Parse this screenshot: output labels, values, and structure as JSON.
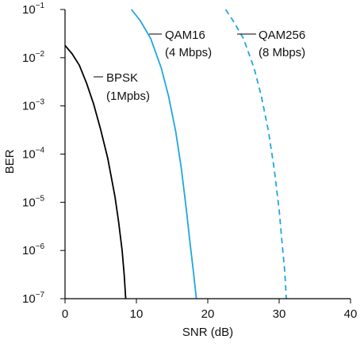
{
  "chart_data": {
    "type": "line",
    "title": "",
    "xlabel": "SNR (dB)",
    "ylabel": "BER",
    "xlim": [
      0,
      40
    ],
    "ylim": [
      1e-07,
      0.1
    ],
    "yscale": "log",
    "grid": false,
    "x_ticks": [
      0,
      10,
      20,
      30,
      40
    ],
    "x_tick_labels": [
      "0",
      "10",
      "20",
      "30",
      "40"
    ],
    "y_ticks": [
      {
        "base": "10",
        "exp": "−1",
        "value": 0.1
      },
      {
        "base": "10",
        "exp": "−2",
        "value": 0.01
      },
      {
        "base": "10",
        "exp": "−3",
        "value": 0.001
      },
      {
        "base": "10",
        "exp": "−4",
        "value": 0.0001
      },
      {
        "base": "10",
        "exp": "−5",
        "value": 1e-05
      },
      {
        "base": "10",
        "exp": "−6",
        "value": 1e-06
      },
      {
        "base": "10",
        "exp": "−7",
        "value": 1e-07
      }
    ],
    "series": [
      {
        "name": "BPSK (1Mpbs)",
        "label_lines": [
          "BPSK",
          "(1Mpbs)"
        ],
        "color": "#000000",
        "dash": "solid",
        "x": [
          0,
          1,
          2,
          3,
          4,
          5,
          6,
          7,
          7.5,
          8,
          8.3,
          8.5
        ],
        "y": [
          0.018,
          0.012,
          0.007,
          0.003,
          0.0011,
          0.00032,
          8e-05,
          1.3e-05,
          4e-06,
          1e-06,
          3e-07,
          1e-07
        ]
      },
      {
        "name": "QAM16 (4 Mbps)",
        "label_lines": [
          "QAM16",
          "(4 Mbps)"
        ],
        "color": "#1ea7e1",
        "dash": "solid",
        "x": [
          9.3,
          10.5,
          12,
          13.5,
          14.5,
          15.5,
          16.3,
          17,
          17.5,
          18,
          18.4
        ],
        "y": [
          0.1,
          0.06,
          0.025,
          0.006,
          0.0016,
          0.0003,
          5e-05,
          7e-06,
          1.5e-06,
          3.5e-07,
          1e-07
        ]
      },
      {
        "name": "QAM256 (8 Mbps)",
        "label_lines": [
          "QAM256",
          "(8 Mbps)"
        ],
        "color": "#1ea7e1",
        "dash": "dashed",
        "x": [
          22.5,
          23.5,
          25,
          26.5,
          27.5,
          28.5,
          29.3,
          30,
          30.4,
          30.8,
          31
        ],
        "y": [
          0.1,
          0.06,
          0.025,
          0.006,
          0.0016,
          0.0003,
          5e-05,
          7e-06,
          1.5e-06,
          3.5e-07,
          1e-07
        ]
      }
    ]
  }
}
